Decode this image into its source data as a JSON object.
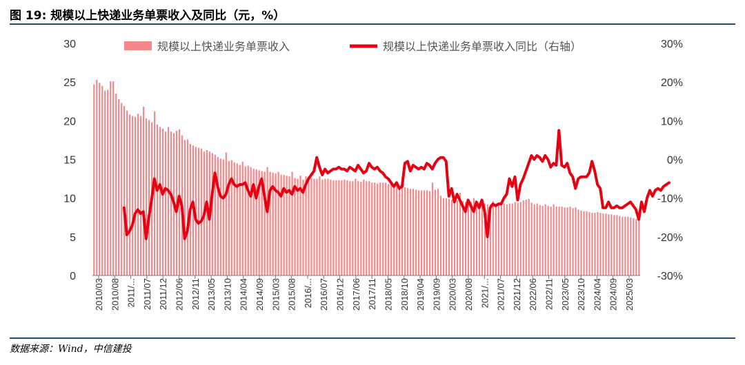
{
  "title": "图 19: 规模以上快递业务单票收入及同比（元，%）",
  "source": "数据来源：Wind，中信建投",
  "colors": {
    "bar": "#f4878a",
    "line": "#e60012",
    "rule": "#1f4e79"
  },
  "chart_data": {
    "type": "bar",
    "series": [
      {
        "name": "规模以上快递业务单票收入",
        "type": "bar",
        "axis": "left",
        "values": [
          24.7,
          25.3,
          24.9,
          24.5,
          23.9,
          24.0,
          25.1,
          25.1,
          23.5,
          22.8,
          22.3,
          21.9,
          21.3,
          20.8,
          20.6,
          20.5,
          20.9,
          20.6,
          21.8,
          20.3,
          20.1,
          19.8,
          21.2,
          19.5,
          19.2,
          19.0,
          18.6,
          19.2,
          18.6,
          18.4,
          18.7,
          18.9,
          18.1,
          17.5,
          17.6,
          17.0,
          16.8,
          16.6,
          16.5,
          16.4,
          16.0,
          16.2,
          16.0,
          15.8,
          15.6,
          15.3,
          15.1,
          15.0,
          15.9,
          14.8,
          14.9,
          14.6,
          14.5,
          14.3,
          14.7,
          14.1,
          14.2,
          14.0,
          13.8,
          13.7,
          13.6,
          13.5,
          13.4,
          14.0,
          13.4,
          13.3,
          13.2,
          13.4,
          13.0,
          13.0,
          12.9,
          12.8,
          13.4,
          12.6,
          12.5,
          12.9,
          12.4,
          12.8,
          12.6,
          12.6,
          12.5,
          12.5,
          12.8,
          12.4,
          12.5,
          12.5,
          12.4,
          12.3,
          12.3,
          12.3,
          12.3,
          12.4,
          12.3,
          12.2,
          12.2,
          12.5,
          12.2,
          12.1,
          12.4,
          12.2,
          12.2,
          12.0,
          12.0,
          11.9,
          12.0,
          12.0,
          12.0,
          11.8,
          11.8,
          11.7,
          11.9,
          11.7,
          11.5,
          11.4,
          11.3,
          11.2,
          11.2,
          11.1,
          11.0,
          11.0,
          11.0,
          11.0,
          10.9,
          12.0,
          11.1,
          11.2,
          10.3,
          10.0,
          10.0,
          9.9,
          9.8,
          9.7,
          9.7,
          10.7,
          9.6,
          9.5,
          9.5,
          9.5,
          10.0,
          9.5,
          9.4,
          9.4,
          9.3,
          9.2,
          9.2,
          9.6,
          9.3,
          9.3,
          9.2,
          9.3,
          9.2,
          9.3,
          9.3,
          9.5,
          9.4,
          9.5,
          9.7,
          9.8,
          9.9,
          9.4,
          9.2,
          9.3,
          9.1,
          9.0,
          9.2,
          9.0,
          8.9,
          9.2,
          8.9,
          8.9,
          8.9,
          8.8,
          8.8,
          8.9,
          8.7,
          8.8,
          8.5,
          8.4,
          8.3,
          8.3,
          8.2,
          8.1,
          8.1,
          8.2,
          8.1,
          8.0,
          8.0,
          7.9,
          7.9,
          7.8,
          7.8,
          7.7,
          7.6,
          7.6,
          7.6,
          7.5,
          7.4,
          7.3,
          7.5
        ]
      },
      {
        "name": "规模以上快递业务单票收入同比（右轴）",
        "type": "line",
        "axis": "right",
        "start_index": 11,
        "values": [
          -12.5,
          -19.5,
          -18.5,
          -17.0,
          -14.0,
          -13.0,
          -14.0,
          -13.5,
          -20.5,
          -15.0,
          -10.5,
          -5.0,
          -8.0,
          -6.5,
          -9.0,
          -7.5,
          -8.0,
          -9.0,
          -11.0,
          -13.5,
          -9.5,
          -12.0,
          -20.5,
          -18.5,
          -13.0,
          -11.0,
          -15.5,
          -16.5,
          -16.0,
          -14.5,
          -11.0,
          -15.5,
          -9.0,
          -3.5,
          -7.0,
          -9.5,
          -10.0,
          -9.0,
          -6.5,
          -5.0,
          -6.5,
          -7.0,
          -6.5,
          -6.5,
          -6.0,
          -8.0,
          -9.5,
          -6.5,
          -10.0,
          -7.0,
          -5.0,
          -9.5,
          -13.5,
          -8.0,
          -7.0,
          -8.0,
          -8.5,
          -9.5,
          -7.5,
          -8.5,
          -8.0,
          -9.0,
          -7.0,
          -8.0,
          -7.5,
          -8.5,
          -6.5,
          -5.0,
          -4.0,
          -3.0,
          0.5,
          -2.0,
          -4.0,
          -2.5,
          -3.5,
          -3.0,
          -2.5,
          -2.5,
          -2.0,
          -2.5,
          -2.5,
          -3.0,
          -2.0,
          -2.5,
          -3.0,
          -1.5,
          -2.5,
          -3.5,
          -3.0,
          -1.0,
          -2.0,
          -2.5,
          -2.0,
          -3.0,
          -3.5,
          -4.5,
          -5.0,
          -6.0,
          -7.0,
          -6.0,
          -7.5,
          -7.0,
          -1.0,
          -0.5,
          -3.0,
          -1.5,
          -2.0,
          -2.5,
          -2.0,
          -2.5,
          -1.0,
          -1.5,
          -2.5,
          -1.0,
          0.0,
          0.5,
          0.5,
          -0.5,
          -9.5,
          -7.5,
          -11.0,
          -9.0,
          -10.5,
          -12.0,
          -13.5,
          -10.5,
          -12.0,
          -13.5,
          -11.0,
          -12.5,
          -10.5,
          -13.5,
          -20.0,
          -12.5,
          -11.5,
          -12.0,
          -11.5,
          -11.5,
          -10.0,
          -9.0,
          -5.0,
          -7.0,
          -4.5,
          -10.5,
          -6.5,
          -5.0,
          -3.0,
          -1.0,
          1.0,
          0.0,
          1.0,
          0.5,
          -0.5,
          1.0,
          0.0,
          -2.0,
          -1.0,
          -1.5,
          7.5,
          -1.5,
          -2.0,
          -1.0,
          -3.5,
          -4.5,
          -7.5,
          -5.0,
          -4.5,
          -4.5,
          -4.5,
          -3.5,
          -0.5,
          -3.0,
          -6.5,
          -7.5,
          -12.5,
          -12.5,
          -11.0,
          -12.5,
          -12.5,
          -12.0,
          -12.5,
          -12.5,
          -12.0,
          -11.5,
          -11.0,
          -12.0,
          -13.0,
          -15.5,
          -11.0,
          -13.5,
          -10.0,
          -8.0,
          -9.5,
          -8.0,
          -7.5,
          -8.0,
          -7.0,
          -6.5,
          -6.0
        ]
      }
    ],
    "x_tick_labels": [
      "2010/03",
      "2010/08",
      "2011/...",
      "2011/07",
      "2011/12",
      "2012/06",
      "2012/11",
      "2013/05",
      "2013/10",
      "2014/04",
      "2014/09",
      "2015/03",
      "2015/08",
      "2016/...",
      "2016/07",
      "2016/12",
      "2017/06",
      "2017/11",
      "2018/05",
      "2018/10",
      "2019/04",
      "2019/09",
      "2020/03",
      "2020/08",
      "2021/...",
      "2021/07",
      "2021/12",
      "2022/06",
      "2022/11",
      "2023/05",
      "2023/10",
      "2024/04",
      "2024/09",
      "2025/03"
    ],
    "y_left": {
      "ticks": [
        0,
        5,
        10,
        15,
        20,
        25,
        30
      ],
      "range": [
        0,
        30
      ]
    },
    "y_right": {
      "ticks": [
        "-30%",
        "-20%",
        "-10%",
        "0%",
        "10%",
        "20%",
        "30%"
      ],
      "range": [
        -30,
        30
      ]
    },
    "grid": false,
    "legend_placement": "top"
  }
}
